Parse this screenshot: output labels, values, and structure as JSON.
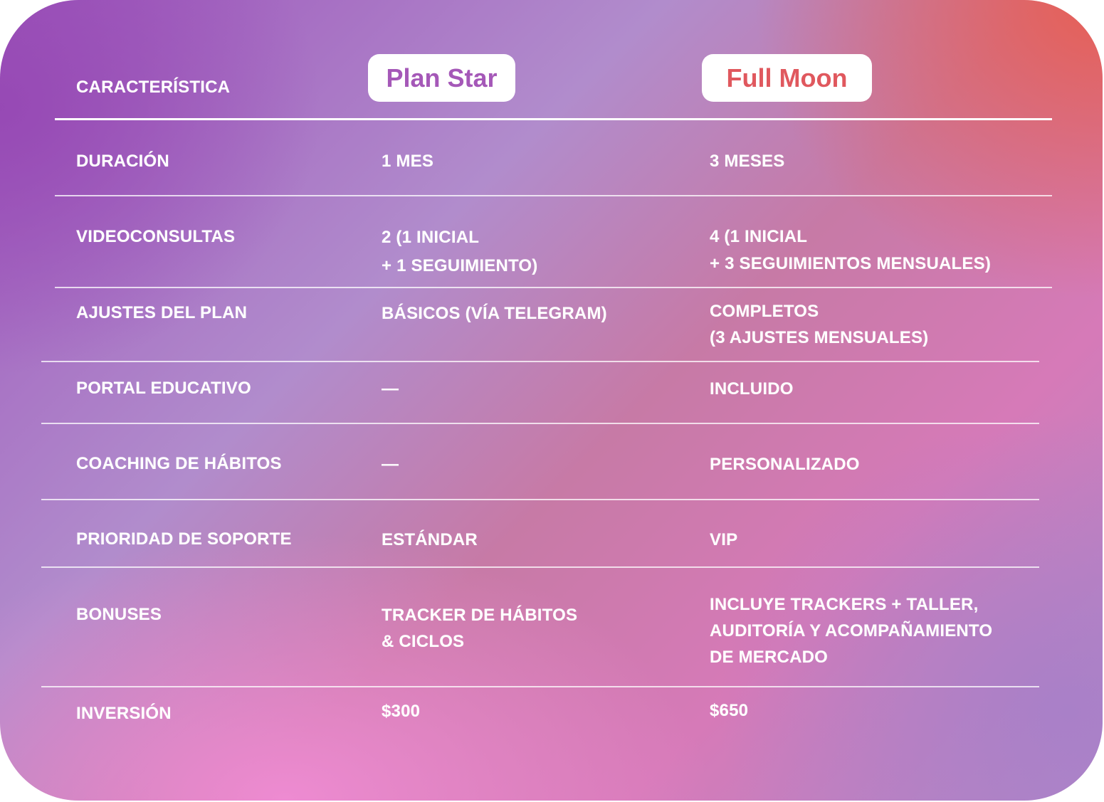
{
  "header": {
    "feature_label": "CARACTERÍSTICA",
    "plans": [
      {
        "name": "Plan Star",
        "color": "#a558b8"
      },
      {
        "name": "Full Moon",
        "color": "#e0585e"
      }
    ]
  },
  "rows": [
    {
      "feature": "DURACIÓN",
      "star": "1 MES",
      "moon": "3 MESES"
    },
    {
      "feature": "VIDEOCONSULTAS",
      "star": "2 (1 INICIAL\n+ 1 SEGUIMIENTO)",
      "moon": "4 (1 INICIAL\n+ 3 SEGUIMIENTOS MENSUALES)"
    },
    {
      "feature": "AJUSTES DEL PLAN",
      "star": "BÁSICOS (VÍA TELEGRAM)",
      "moon": "COMPLETOS\n(3 AJUSTES MENSUALES)"
    },
    {
      "feature": "PORTAL EDUCATIVO",
      "star": "—",
      "moon": "INCLUIDO"
    },
    {
      "feature": "COACHING DE HÁBITOS",
      "star": "—",
      "moon": "PERSONALIZADO"
    },
    {
      "feature": "PRIORIDAD DE SOPORTE",
      "star": "ESTÁNDAR",
      "moon": "VIP"
    },
    {
      "feature": "BONUSES",
      "star": "TRACKER DE HÁBITOS\n& CICLOS",
      "moon": "INCLUYE TRACKERS + TALLER,\nAUDITORÍA Y ACOMPAÑAMIENTO\nDE MERCADO"
    },
    {
      "feature": "INVERSIÓN",
      "star": "$300",
      "moon": "$650"
    }
  ]
}
